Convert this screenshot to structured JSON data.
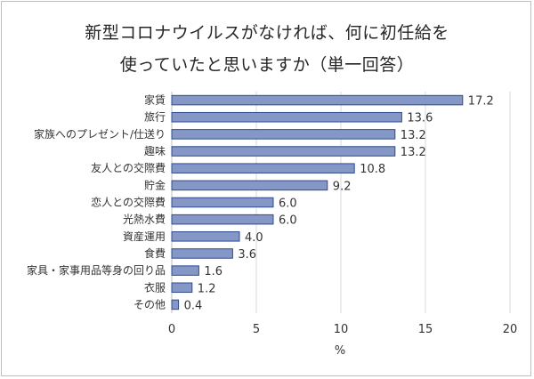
{
  "chart_data": {
    "type": "bar",
    "orientation": "horizontal",
    "title_line1": "新型コロナウイルスがなければ、何に初任給を",
    "title_line2": "使っていたと思いますか（単一回答）",
    "categories": [
      "家賃",
      "旅行",
      "家族へのプレゼント/仕送り",
      "趣味",
      "友人との交際費",
      "貯金",
      "恋人との交際費",
      "光熱水費",
      "資産運用",
      "食費",
      "家具・家事用品等身の回り品",
      "衣服",
      "その他"
    ],
    "values": [
      17.2,
      13.6,
      13.2,
      13.2,
      10.8,
      9.2,
      6.0,
      6.0,
      4.0,
      3.6,
      1.6,
      1.2,
      0.4
    ],
    "value_labels": [
      "17.2",
      "13.6",
      "13.2",
      "13.2",
      "10.8",
      "9.2",
      "6.0",
      "6.0",
      "4.0",
      "3.6",
      "1.6",
      "1.2",
      "0.4"
    ],
    "xlabel": "%",
    "xlim": [
      0,
      20
    ],
    "xticks": [
      "0",
      "5",
      "10",
      "15",
      "20"
    ],
    "grid": true,
    "bar_color": "#8497c6",
    "bar_edge_color": "#2f4b8c"
  }
}
